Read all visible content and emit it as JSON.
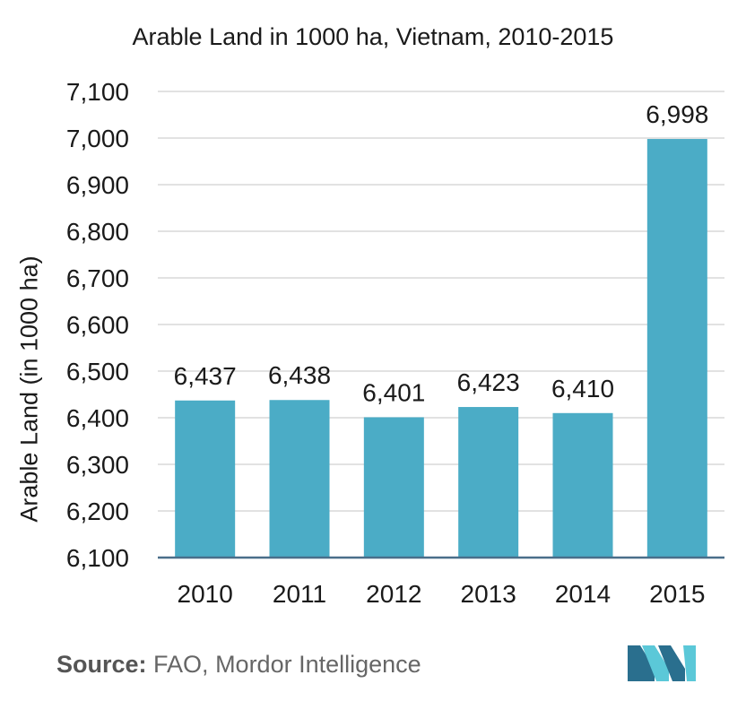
{
  "chart_data": {
    "type": "bar",
    "title": "Arable Land in 1000 ha, Vietnam, 2010-2015",
    "ylabel": "Arable Land (in 1000 ha)",
    "xlabel": "",
    "categories": [
      "2010",
      "2011",
      "2012",
      "2013",
      "2014",
      "2015"
    ],
    "values": [
      6437,
      6438,
      6401,
      6423,
      6410,
      6998
    ],
    "value_labels": [
      "6,437",
      "6,438",
      "6,401",
      "6,423",
      "6,410",
      "6,998"
    ],
    "ylim": [
      6100,
      7100
    ],
    "yticks": [
      "6,100",
      "6,200",
      "6,300",
      "6,400",
      "6,500",
      "6,600",
      "6,700",
      "6,800",
      "6,900",
      "7,000",
      "7,100"
    ],
    "grid": true,
    "bar_color": "#4bacc6",
    "gridline_color": "#d9d9d9",
    "axis_color": "#4a6f8a"
  },
  "source": {
    "label": "Source:",
    "text": "FAO, Mordor Intelligence"
  },
  "logo": {
    "icon": "mordor-intelligence-logo",
    "colors": [
      "#2a6f8e",
      "#5bc8d8"
    ]
  }
}
